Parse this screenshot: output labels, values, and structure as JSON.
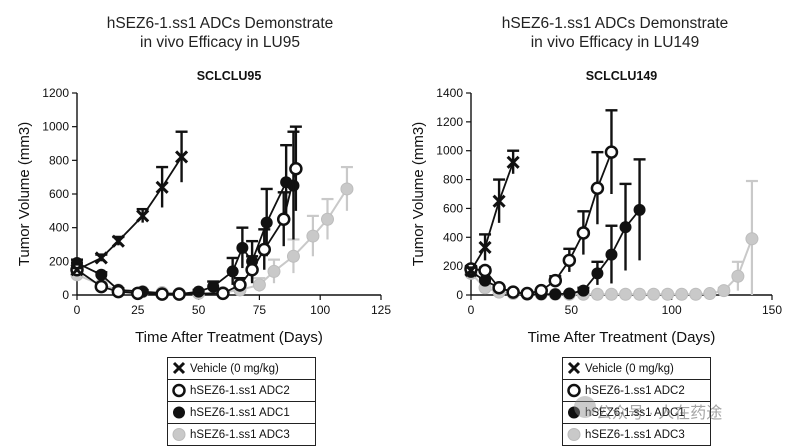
{
  "page": {
    "titles": [
      {
        "line1": "hSEZ6-1.ss1 ADCs Demonstrate",
        "line2": "in vivo Efficacy in LU95"
      },
      {
        "line1": "hSEZ6-1.ss1 ADCs Demonstrate",
        "line2": "in vivo Efficacy in LU149"
      }
    ],
    "watermark": "公众号 · 人在药途"
  },
  "legend": [
    {
      "label": "Vehicle (0 mg/kg)",
      "marker": "x-cross"
    },
    {
      "label": "hSEZ6-1.ss1 ADC2",
      "marker": "open-circle"
    },
    {
      "label": "hSEZ6-1.ss1 ADC1",
      "marker": "filled-circle"
    },
    {
      "label": "hSEZ6-1.ss1 ADC3",
      "marker": "gray-circle"
    }
  ],
  "colors": {
    "axis": "#111111",
    "series_black": "#111111",
    "series_gray": "#c9c9c9"
  },
  "chart_data": [
    {
      "type": "line",
      "title": "SCLCLU95",
      "xlabel": "Time After Treatment (Days)",
      "ylabel": "Tumor Volume (mm3)",
      "xlim": [
        0,
        125
      ],
      "ylim": [
        0,
        1200
      ],
      "xticks": [
        0,
        25,
        50,
        75,
        100,
        125
      ],
      "yticks": [
        0,
        200,
        400,
        600,
        800,
        1000,
        1200
      ],
      "series": [
        {
          "name": "Vehicle (0 mg/kg)",
          "marker": "x-cross",
          "x": [
            0,
            10,
            17,
            27,
            35,
            43
          ],
          "y": [
            150,
            220,
            320,
            470,
            640,
            820
          ],
          "err": [
            10,
            20,
            25,
            40,
            120,
            150
          ]
        },
        {
          "name": "hSEZ6-1.ss1 ADC2",
          "marker": "open-circle",
          "x": [
            0,
            10,
            17,
            25,
            35,
            42,
            60,
            67,
            72,
            77,
            85,
            90
          ],
          "y": [
            150,
            50,
            20,
            10,
            5,
            5,
            10,
            60,
            150,
            270,
            450,
            750
          ],
          "err": [
            15,
            10,
            5,
            5,
            3,
            3,
            10,
            40,
            80,
            120,
            160,
            250
          ]
        },
        {
          "name": "hSEZ6-1.ss1 ADC1",
          "marker": "filled-circle",
          "x": [
            0,
            10,
            17,
            27,
            35,
            42,
            50,
            56,
            64,
            68,
            72,
            78,
            86,
            89
          ],
          "y": [
            190,
            120,
            30,
            20,
            10,
            5,
            20,
            50,
            140,
            280,
            200,
            430,
            670,
            650
          ],
          "err": [
            20,
            15,
            10,
            8,
            5,
            5,
            10,
            30,
            80,
            120,
            120,
            200,
            220,
            320
          ]
        },
        {
          "name": "hSEZ6-1.ss1 ADC3",
          "marker": "gray-circle",
          "x": [
            0,
            10,
            17,
            27,
            35,
            42,
            50,
            60,
            67,
            75,
            81,
            89,
            97,
            103,
            111
          ],
          "y": [
            120,
            60,
            30,
            20,
            15,
            10,
            10,
            15,
            30,
            60,
            140,
            230,
            350,
            450,
            630
          ],
          "err": [
            15,
            10,
            8,
            5,
            5,
            5,
            5,
            10,
            20,
            40,
            70,
            100,
            120,
            120,
            130
          ]
        }
      ]
    },
    {
      "type": "line",
      "title": "SCLCLU149",
      "xlabel": "Time After Treatment (Days)",
      "ylabel": "Tumor Volume (mm3)",
      "xlim": [
        0,
        150
      ],
      "ylim": [
        0,
        1400
      ],
      "xticks": [
        0,
        50,
        100,
        150
      ],
      "yticks": [
        0,
        200,
        400,
        600,
        800,
        1000,
        1200,
        1400
      ],
      "series": [
        {
          "name": "Vehicle (0 mg/kg)",
          "marker": "x-cross",
          "x": [
            0,
            7,
            14,
            21
          ],
          "y": [
            170,
            330,
            650,
            920
          ],
          "err": [
            20,
            90,
            150,
            80
          ]
        },
        {
          "name": "hSEZ6-1.ss1 ADC2",
          "marker": "open-circle",
          "x": [
            0,
            7,
            14,
            21,
            28,
            35,
            42,
            49,
            56,
            63,
            70
          ],
          "y": [
            180,
            170,
            50,
            20,
            10,
            30,
            100,
            240,
            430,
            740,
            990
          ],
          "err": [
            20,
            20,
            10,
            5,
            5,
            10,
            30,
            80,
            150,
            250,
            290
          ]
        },
        {
          "name": "hSEZ6-1.ss1 ADC1",
          "marker": "filled-circle",
          "x": [
            0,
            7,
            14,
            21,
            28,
            35,
            42,
            49,
            56,
            63,
            70,
            77,
            84
          ],
          "y": [
            160,
            100,
            50,
            20,
            5,
            5,
            5,
            10,
            30,
            150,
            280,
            470,
            590
          ],
          "err": [
            20,
            15,
            10,
            5,
            3,
            3,
            3,
            5,
            20,
            80,
            200,
            300,
            350
          ]
        },
        {
          "name": "hSEZ6-1.ss1 ADC3",
          "marker": "gray-circle",
          "x": [
            0,
            7,
            14,
            21,
            28,
            35,
            42,
            49,
            56,
            63,
            70,
            77,
            84,
            91,
            98,
            105,
            112,
            119,
            126,
            133,
            140
          ],
          "y": [
            150,
            50,
            20,
            10,
            5,
            5,
            5,
            5,
            5,
            5,
            5,
            5,
            5,
            5,
            5,
            5,
            5,
            10,
            30,
            130,
            390
          ],
          "err": [
            20,
            10,
            5,
            3,
            3,
            3,
            3,
            3,
            3,
            3,
            3,
            3,
            3,
            3,
            3,
            3,
            3,
            5,
            20,
            100,
            400
          ]
        }
      ]
    }
  ]
}
